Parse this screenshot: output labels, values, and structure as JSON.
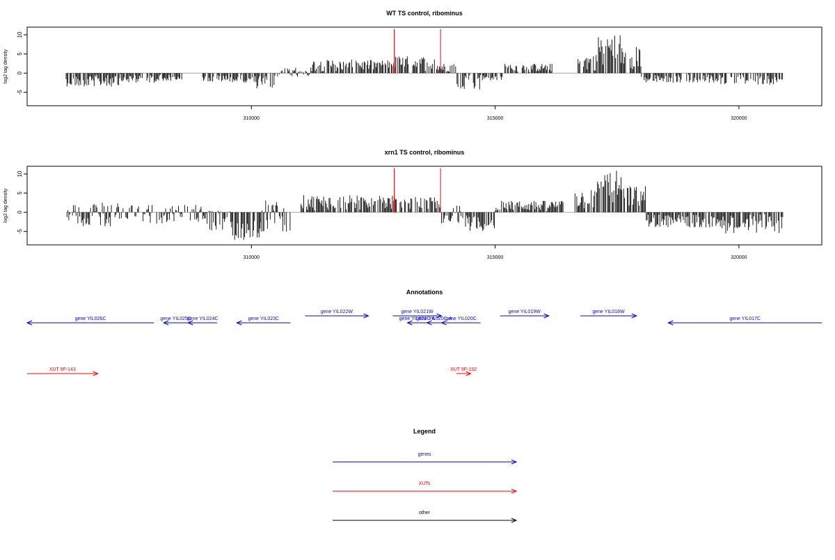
{
  "chart_data": [
    {
      "type": "bar",
      "title": "WT TS control, ribominus",
      "xlabel": "",
      "ylabel": "log2 tag density",
      "xlim": [
        305400,
        321700
      ],
      "ylim": [
        -8.5,
        12
      ],
      "yticks": [
        -5,
        0,
        5,
        10
      ],
      "yticklabels": [
        "-5",
        "0",
        "5",
        "10"
      ],
      "xticks": [
        310000,
        315000,
        320000
      ],
      "xticklabels": [
        "310000",
        "315000",
        "320000"
      ],
      "segments": [
        {
          "start": 306200,
          "end": 307300,
          "min": -3.5,
          "max": -0.4
        },
        {
          "start": 307300,
          "end": 308200,
          "min": -2.5,
          "max": -0.2
        },
        {
          "start": 308200,
          "end": 308600,
          "min": -2.0,
          "max": -0.3
        },
        {
          "start": 309000,
          "end": 309500,
          "min": -2.5,
          "max": -0.3
        },
        {
          "start": 309500,
          "end": 310000,
          "min": -2.5,
          "max": -0.4
        },
        {
          "start": 310000,
          "end": 310500,
          "min": -4.0,
          "max": -0.5
        },
        {
          "start": 310500,
          "end": 311200,
          "min": -1.0,
          "max": 1.5
        },
        {
          "start": 311200,
          "end": 312900,
          "min": 0.4,
          "max": 3.5
        },
        {
          "start": 312900,
          "end": 313800,
          "min": 0.5,
          "max": 4.5
        },
        {
          "start": 313800,
          "end": 314200,
          "min": 0.3,
          "max": 2.5
        },
        {
          "start": 314200,
          "end": 314700,
          "min": -4.5,
          "max": -0.5
        },
        {
          "start": 314700,
          "end": 315200,
          "min": -2.0,
          "max": -0.3
        },
        {
          "start": 315200,
          "end": 316200,
          "min": 0.3,
          "max": 2.5
        },
        {
          "start": 316700,
          "end": 317100,
          "min": 0.5,
          "max": 5.0
        },
        {
          "start": 317100,
          "end": 317600,
          "min": 1.0,
          "max": 10.5
        },
        {
          "start": 317600,
          "end": 318000,
          "min": 1.0,
          "max": 7.0
        },
        {
          "start": 318000,
          "end": 319500,
          "min": -2.5,
          "max": -0.3
        },
        {
          "start": 319500,
          "end": 320900,
          "min": -3.0,
          "max": -0.4
        }
      ],
      "spikes": [
        {
          "x": 312930,
          "value": 11.5,
          "color": "#ff0000"
        },
        {
          "x": 313880,
          "value": 11.5,
          "color": "#ff0000"
        }
      ]
    },
    {
      "type": "bar",
      "title": "xrn1 TS control, ribominus",
      "xlabel": "",
      "ylabel": "log2 tag density",
      "xlim": [
        305400,
        321700
      ],
      "ylim": [
        -8.5,
        12
      ],
      "yticks": [
        -5,
        0,
        5,
        10
      ],
      "yticklabels": [
        "-5",
        "0",
        "5",
        "10"
      ],
      "xticks": [
        310000,
        315000,
        320000
      ],
      "xticklabels": [
        "310000",
        "315000",
        "320000"
      ],
      "segments": [
        {
          "start": 306200,
          "end": 307500,
          "min": -4.0,
          "max": 2.5
        },
        {
          "start": 307500,
          "end": 308300,
          "min": -3.0,
          "max": 2.0
        },
        {
          "start": 308300,
          "end": 309000,
          "min": -2.5,
          "max": 2.0
        },
        {
          "start": 309000,
          "end": 309600,
          "min": -5.0,
          "max": 0.5
        },
        {
          "start": 309600,
          "end": 310200,
          "min": -7.5,
          "max": -0.5
        },
        {
          "start": 310200,
          "end": 310800,
          "min": -5.5,
          "max": 3.5
        },
        {
          "start": 311000,
          "end": 312900,
          "min": 0.5,
          "max": 4.5
        },
        {
          "start": 312900,
          "end": 313900,
          "min": 0.5,
          "max": 4.0
        },
        {
          "start": 313900,
          "end": 314300,
          "min": -3.5,
          "max": 2.0
        },
        {
          "start": 314300,
          "end": 315000,
          "min": -5.0,
          "max": -0.5
        },
        {
          "start": 315000,
          "end": 316400,
          "min": 0.3,
          "max": 3.0
        },
        {
          "start": 316600,
          "end": 317100,
          "min": 0.5,
          "max": 6.0
        },
        {
          "start": 317100,
          "end": 317600,
          "min": 1.0,
          "max": 11.0
        },
        {
          "start": 317600,
          "end": 318100,
          "min": 1.0,
          "max": 7.0
        },
        {
          "start": 318100,
          "end": 319600,
          "min": -4.0,
          "max": -0.5
        },
        {
          "start": 319600,
          "end": 320900,
          "min": -5.5,
          "max": -0.5
        }
      ],
      "spikes": [
        {
          "x": 312930,
          "value": 11.5,
          "color": "#ff0000"
        },
        {
          "x": 313880,
          "value": 11.5,
          "color": "#ff0000"
        }
      ]
    }
  ],
  "annotations": {
    "title": "Annotations",
    "xlim": [
      305400,
      321700
    ],
    "features": [
      {
        "label": "gene YIL026C",
        "start": 305400,
        "end": 308000,
        "strand": "-",
        "row": 0,
        "color": "#0000ff"
      },
      {
        "label": "gene YIL025C",
        "start": 308200,
        "end": 308700,
        "strand": "-",
        "row": 0,
        "color": "#0000ff"
      },
      {
        "label": "gene YIL024C",
        "start": 308700,
        "end": 309300,
        "strand": "-",
        "row": 0,
        "color": "#0000ff"
      },
      {
        "label": "gene YIL023C",
        "start": 309700,
        "end": 310800,
        "strand": "-",
        "row": 0,
        "color": "#0000ff"
      },
      {
        "label": "gene YIL022W",
        "start": 311100,
        "end": 312400,
        "strand": "+",
        "row": 1,
        "color": "#0000ff"
      },
      {
        "label": "gene YIL021W",
        "start": 312900,
        "end": 313900,
        "strand": "+",
        "row": 1,
        "color": "#0000ff"
      },
      {
        "label": "gene YIL021C-A",
        "start": 313200,
        "end": 313600,
        "strand": "-",
        "row": 0,
        "color": "#0000ff"
      },
      {
        "label": "gene YIL020C-A",
        "start": 313600,
        "end": 313900,
        "strand": "-",
        "row": 0,
        "color": "#0000ff"
      },
      {
        "label": "gene YIL020C",
        "start": 313900,
        "end": 314700,
        "strand": "-",
        "row": 0,
        "color": "#0000ff"
      },
      {
        "label": "gene YIL019W",
        "start": 315100,
        "end": 316100,
        "strand": "+",
        "row": 1,
        "color": "#0000ff"
      },
      {
        "label": "gene YIL018W",
        "start": 316750,
        "end": 317900,
        "strand": "+",
        "row": 1,
        "color": "#0000ff"
      },
      {
        "label": "gene YIL017C",
        "start": 318550,
        "end": 321700,
        "strand": "-",
        "row": 0,
        "color": "#0000ff"
      },
      {
        "label": "XUT 9F-143",
        "start": 305400,
        "end": 306850,
        "strand": "+",
        "row": 2,
        "color": "#ff0000"
      },
      {
        "label": "XUT 9F-152",
        "start": 314200,
        "end": 314500,
        "strand": "+",
        "row": 2,
        "color": "#ff0000"
      }
    ]
  },
  "legend": {
    "title": "Legend",
    "entries": [
      {
        "label": "genes",
        "color": "#0000ff"
      },
      {
        "label": "XUTs",
        "color": "#ff0000"
      },
      {
        "label": "other",
        "color": "#000000"
      }
    ]
  }
}
